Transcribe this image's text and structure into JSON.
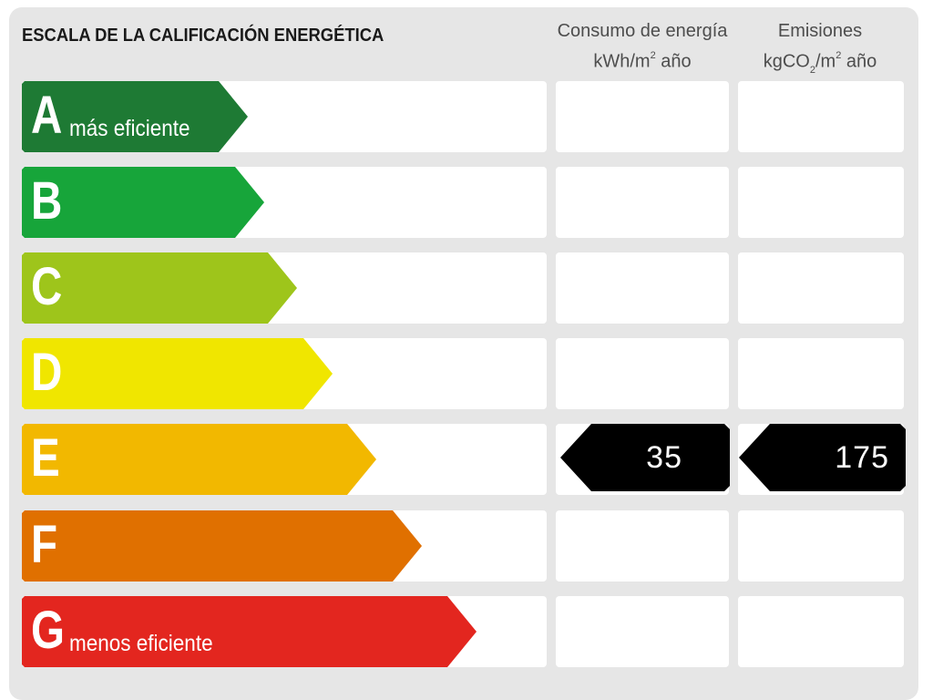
{
  "title": "ESCALA DE LA CALIFICACIÓN ENERGÉTICA",
  "columns": {
    "consumo": {
      "line1": "Consumo de energía",
      "unit_prefix": "kWh/m",
      "unit_sup": "2",
      "unit_suffix": " año"
    },
    "emisiones": {
      "line1": "Emisiones",
      "unit_prefix": "kgCO",
      "unit_sub": "2",
      "unit_mid": "/m",
      "unit_sup": "2",
      "unit_suffix": " año"
    }
  },
  "ratings": [
    {
      "letter": "A",
      "label": "más eficiente",
      "color": "#1e7a34"
    },
    {
      "letter": "B",
      "label": "",
      "color": "#17a53a"
    },
    {
      "letter": "C",
      "label": "",
      "color": "#9ec51b"
    },
    {
      "letter": "D",
      "label": "",
      "color": "#f0e600"
    },
    {
      "letter": "E",
      "label": "",
      "color": "#f2b800"
    },
    {
      "letter": "F",
      "label": "",
      "color": "#e07000"
    },
    {
      "letter": "G",
      "label": "menos eficiente",
      "color": "#e3261f"
    }
  ],
  "current": {
    "rating": "E",
    "consumo": "35",
    "emisiones": "175",
    "badge_color": "#000000"
  }
}
